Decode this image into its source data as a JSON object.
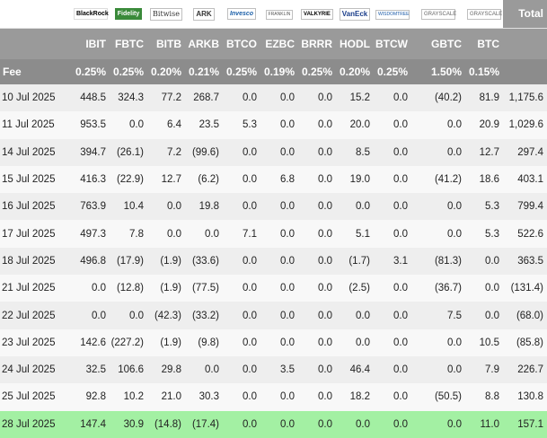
{
  "header": {
    "total_label": "Total",
    "fee_label": "Fee",
    "issuers": [
      {
        "logo_text": "BlackRock",
        "logo_icon": "blackrock-logo",
        "ticker": "IBIT",
        "fee": "0.25%"
      },
      {
        "logo_text": "Fidelity",
        "logo_icon": "fidelity-logo",
        "ticker": "FBTC",
        "fee": "0.25%"
      },
      {
        "logo_text": "Bitwise",
        "logo_icon": "bitwise-logo",
        "ticker": "BITB",
        "fee": "0.20%"
      },
      {
        "logo_text": "ARK",
        "logo_icon": "ark-logo",
        "ticker": "ARKB",
        "fee": "0.21%"
      },
      {
        "logo_text": "Invesco",
        "logo_icon": "invesco-logo",
        "ticker": "BTCO",
        "fee": "0.25%"
      },
      {
        "logo_text": "FRANKLIN",
        "logo_icon": "franklin-logo",
        "ticker": "EZBC",
        "fee": "0.19%"
      },
      {
        "logo_text": "VALKYRIE",
        "logo_icon": "valkyrie-logo",
        "ticker": "BRRR",
        "fee": "0.25%"
      },
      {
        "logo_text": "VanEck",
        "logo_icon": "vaneck-logo",
        "ticker": "HODL",
        "fee": "0.20%"
      },
      {
        "logo_text": "WISDOMTREE",
        "logo_icon": "wisdomtree-logo",
        "ticker": "BTCW",
        "fee": "0.25%"
      },
      {
        "logo_text": "GRAYSCALE",
        "logo_icon": "grayscale-logo",
        "ticker": "GBTC",
        "fee": "1.50%"
      },
      {
        "logo_text": "GRAYSCALE",
        "logo_icon": "grayscale-logo",
        "ticker": "BTC",
        "fee": "0.15%"
      }
    ]
  },
  "rows": [
    {
      "date": "10 Jul 2025",
      "values": [
        "448.5",
        "324.3",
        "77.2",
        "268.7",
        "0.0",
        "0.0",
        "0.0",
        "15.2",
        "0.0",
        "(40.2)",
        "81.9"
      ],
      "total": "1,175.6"
    },
    {
      "date": "11 Jul 2025",
      "values": [
        "953.5",
        "0.0",
        "6.4",
        "23.5",
        "5.3",
        "0.0",
        "0.0",
        "20.0",
        "0.0",
        "0.0",
        "20.9"
      ],
      "total": "1,029.6"
    },
    {
      "date": "14 Jul 2025",
      "values": [
        "394.7",
        "(26.1)",
        "7.2",
        "(99.6)",
        "0.0",
        "0.0",
        "0.0",
        "8.5",
        "0.0",
        "0.0",
        "12.7"
      ],
      "total": "297.4"
    },
    {
      "date": "15 Jul 2025",
      "values": [
        "416.3",
        "(22.9)",
        "12.7",
        "(6.2)",
        "0.0",
        "6.8",
        "0.0",
        "19.0",
        "0.0",
        "(41.2)",
        "18.6"
      ],
      "total": "403.1"
    },
    {
      "date": "16 Jul 2025",
      "values": [
        "763.9",
        "10.4",
        "0.0",
        "19.8",
        "0.0",
        "0.0",
        "0.0",
        "0.0",
        "0.0",
        "0.0",
        "5.3"
      ],
      "total": "799.4"
    },
    {
      "date": "17 Jul 2025",
      "values": [
        "497.3",
        "7.8",
        "0.0",
        "0.0",
        "7.1",
        "0.0",
        "0.0",
        "5.1",
        "0.0",
        "0.0",
        "5.3"
      ],
      "total": "522.6"
    },
    {
      "date": "18 Jul 2025",
      "values": [
        "496.8",
        "(17.9)",
        "(1.9)",
        "(33.6)",
        "0.0",
        "0.0",
        "0.0",
        "(1.7)",
        "3.1",
        "(81.3)",
        "0.0"
      ],
      "total": "363.5"
    },
    {
      "date": "21 Jul 2025",
      "values": [
        "0.0",
        "(12.8)",
        "(1.9)",
        "(77.5)",
        "0.0",
        "0.0",
        "0.0",
        "(2.5)",
        "0.0",
        "(36.7)",
        "0.0"
      ],
      "total": "(131.4)"
    },
    {
      "date": "22 Jul 2025",
      "values": [
        "0.0",
        "0.0",
        "(42.3)",
        "(33.2)",
        "0.0",
        "0.0",
        "0.0",
        "0.0",
        "0.0",
        "7.5",
        "0.0"
      ],
      "total": "(68.0)"
    },
    {
      "date": "23 Jul 2025",
      "values": [
        "142.6",
        "(227.2)",
        "(1.9)",
        "(9.8)",
        "0.0",
        "0.0",
        "0.0",
        "0.0",
        "0.0",
        "0.0",
        "10.5"
      ],
      "total": "(85.8)"
    },
    {
      "date": "24 Jul 2025",
      "values": [
        "32.5",
        "106.6",
        "29.8",
        "0.0",
        "0.0",
        "3.5",
        "0.0",
        "46.4",
        "0.0",
        "0.0",
        "7.9"
      ],
      "total": "226.7"
    },
    {
      "date": "25 Jul 2025",
      "values": [
        "92.8",
        "10.2",
        "21.0",
        "30.3",
        "0.0",
        "0.0",
        "0.0",
        "18.2",
        "0.0",
        "(50.5)",
        "8.8"
      ],
      "total": "130.8"
    },
    {
      "date": "28 Jul 2025",
      "values": [
        "147.4",
        "30.9",
        "(14.8)",
        "(17.4)",
        "0.0",
        "0.0",
        "0.0",
        "0.0",
        "0.0",
        "0.0",
        "11.0"
      ],
      "total": "157.1",
      "highlight": true
    }
  ],
  "colors": {
    "header_bg": "#9a9a9a",
    "fee_bg": "#8c8c8c",
    "negative": "#e00000",
    "highlight_row": "#a3f0a3"
  }
}
